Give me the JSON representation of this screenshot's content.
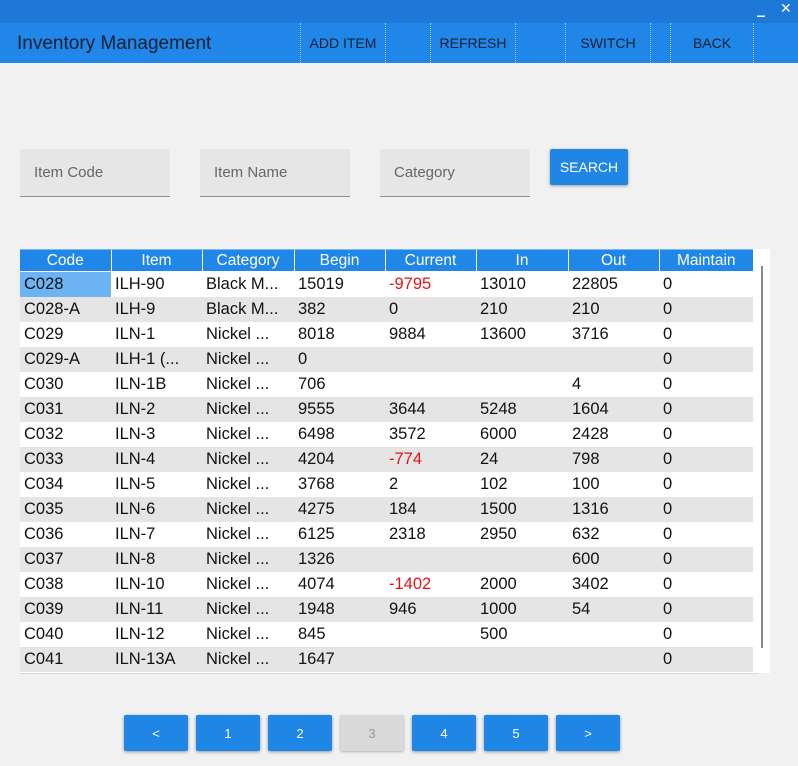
{
  "window": {
    "minimize_label": "_",
    "close_label": "✕"
  },
  "app": {
    "title": "Inventory Management"
  },
  "nav": {
    "add_item": "ADD ITEM",
    "refresh": "REFRESH",
    "switch": "SWITCH",
    "back": "BACK"
  },
  "search": {
    "item_code_placeholder": "Item Code",
    "item_name_placeholder": "Item Name",
    "category_placeholder": "Category",
    "button_label": "SEARCH"
  },
  "table": {
    "columns": [
      "Code",
      "Item",
      "Category",
      "Begin",
      "Current",
      "In",
      "Out",
      "Maintain"
    ],
    "selected_row": 0,
    "rows": [
      [
        "C028",
        "ILH-90",
        "Black M...",
        "15019",
        "-9795",
        "13010",
        "22805",
        "0"
      ],
      [
        "C028-A",
        "ILH-9",
        "Black M...",
        "382",
        "0",
        "210",
        "210",
        "0"
      ],
      [
        "C029",
        "ILN-1",
        "Nickel ...",
        "8018",
        "9884",
        "13600",
        "3716",
        "0"
      ],
      [
        "C029-A",
        "ILH-1 (...",
        "Nickel ...",
        "0",
        "",
        "",
        "",
        "0"
      ],
      [
        "C030",
        "ILN-1B",
        "Nickel ...",
        "706",
        "",
        "",
        "4",
        "0"
      ],
      [
        "C031",
        "ILN-2",
        "Nickel ...",
        "9555",
        "3644",
        "5248",
        "1604",
        "0"
      ],
      [
        "C032",
        "ILN-3",
        "Nickel ...",
        "6498",
        "3572",
        "6000",
        "2428",
        "0"
      ],
      [
        "C033",
        "ILN-4",
        "Nickel ...",
        "4204",
        "-774",
        "24",
        "798",
        "0"
      ],
      [
        "C034",
        "ILN-5",
        "Nickel ...",
        "3768",
        "2",
        "102",
        "100",
        "0"
      ],
      [
        "C035",
        "ILN-6",
        "Nickel ...",
        "4275",
        "184",
        "1500",
        "1316",
        "0"
      ],
      [
        "C036",
        "ILN-7",
        "Nickel ...",
        "6125",
        "2318",
        "2950",
        "632",
        "0"
      ],
      [
        "C037",
        "ILN-8",
        "Nickel ...",
        "1326",
        "",
        "",
        "600",
        "0"
      ],
      [
        "C038",
        "ILN-10",
        "Nickel ...",
        "4074",
        "-1402",
        "2000",
        "3402",
        "0"
      ],
      [
        "C039",
        "ILN-11",
        "Nickel ...",
        "1948",
        "946",
        "1000",
        "54",
        "0"
      ],
      [
        "C040",
        "ILN-12",
        "Nickel ...",
        "845",
        "",
        "500",
        "",
        "0"
      ],
      [
        "C041",
        "ILN-13A",
        "Nickel ...",
        "1647",
        "",
        "",
        "",
        "0"
      ]
    ]
  },
  "colors": {
    "negative": "#e01515",
    "accent": "#2087e8",
    "selected_cell": "#6cb4f4"
  },
  "pagination": {
    "prev": "<",
    "pages": [
      "1",
      "2",
      "3",
      "4",
      "5"
    ],
    "next": ">",
    "current": "3"
  }
}
